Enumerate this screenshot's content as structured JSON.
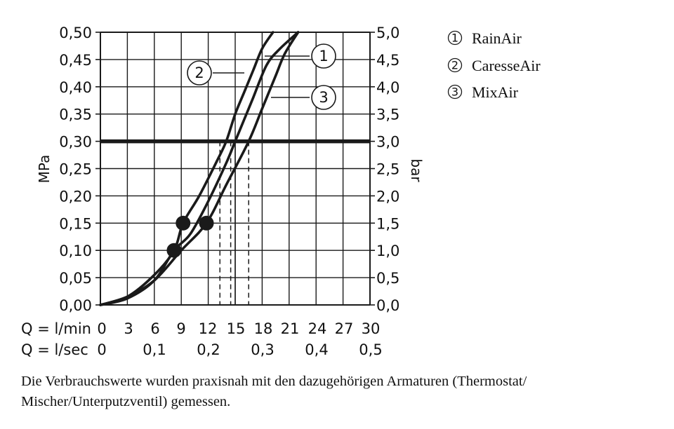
{
  "chart_data": {
    "type": "line",
    "left_axis": {
      "label": "MPa",
      "ticks": [
        "0,00",
        "0,05",
        "0,10",
        "0,15",
        "0,20",
        "0,25",
        "0,30",
        "0,35",
        "0,40",
        "0,45",
        "0,50"
      ],
      "range": [
        0,
        0.5
      ]
    },
    "right_axis": {
      "label": "bar",
      "ticks": [
        "0,0",
        "0,5",
        "1,0",
        "1,5",
        "2,0",
        "2,5",
        "3,0",
        "3,5",
        "4,0",
        "4,5",
        "5,0"
      ],
      "range": [
        0,
        5
      ]
    },
    "x_axis_lmin": {
      "label": "Q = l/min",
      "ticks": [
        "0",
        "3",
        "6",
        "9",
        "12",
        "15",
        "18",
        "21",
        "24",
        "27",
        "30"
      ],
      "range": [
        0,
        30
      ]
    },
    "x_axis_lsec": {
      "label": "Q = l/sec",
      "ticks": [
        "0",
        "0,1",
        "0,2",
        "0,3",
        "0,4",
        "0,5"
      ]
    },
    "grid": true,
    "reference_line": {
      "pressure_mpa": 0.3
    },
    "series": [
      {
        "name": "RainAir",
        "number": "1",
        "x": [
          0,
          3,
          6,
          8.2,
          10,
          12,
          14,
          15,
          16,
          17,
          18.5,
          20,
          22
        ],
        "y": [
          0,
          0.012,
          0.045,
          0.1,
          0.13,
          0.19,
          0.26,
          0.3,
          0.34,
          0.38,
          0.44,
          0.47,
          0.5
        ]
      },
      {
        "name": "CaresseAir",
        "number": "2",
        "x": [
          0,
          3,
          6,
          8.2,
          9.2,
          11,
          13,
          14,
          15,
          16,
          17,
          18,
          19.2
        ],
        "y": [
          0,
          0.015,
          0.055,
          0.1,
          0.15,
          0.2,
          0.265,
          0.3,
          0.35,
          0.39,
          0.43,
          0.47,
          0.5
        ]
      },
      {
        "name": "MixAir",
        "number": "3",
        "x": [
          0,
          3,
          6,
          9,
          11.8,
          14,
          16.5,
          18,
          19.5,
          20.5,
          22
        ],
        "y": [
          0,
          0.015,
          0.045,
          0.1,
          0.15,
          0.22,
          0.3,
          0.36,
          0.42,
          0.46,
          0.5
        ]
      }
    ],
    "markers": [
      {
        "x": 8.2,
        "y": 0.1
      },
      {
        "x": 9.2,
        "y": 0.15
      },
      {
        "x": 11.8,
        "y": 0.15
      }
    ],
    "flow_markers": [
      {
        "x": 13.3,
        "style": "dashed"
      },
      {
        "x": 14.5,
        "style": "dashed"
      },
      {
        "x": 15.0,
        "style": "solid"
      },
      {
        "x": 16.5,
        "style": "dashed"
      }
    ]
  },
  "caption": "Die Verbrauchswerte wurden praxisnah mit den dazugehörigen Armaturen (Thermostat/ Mischer/Unterputzventil) gemessen.",
  "colors": {
    "ink": "#1a1a1a"
  }
}
